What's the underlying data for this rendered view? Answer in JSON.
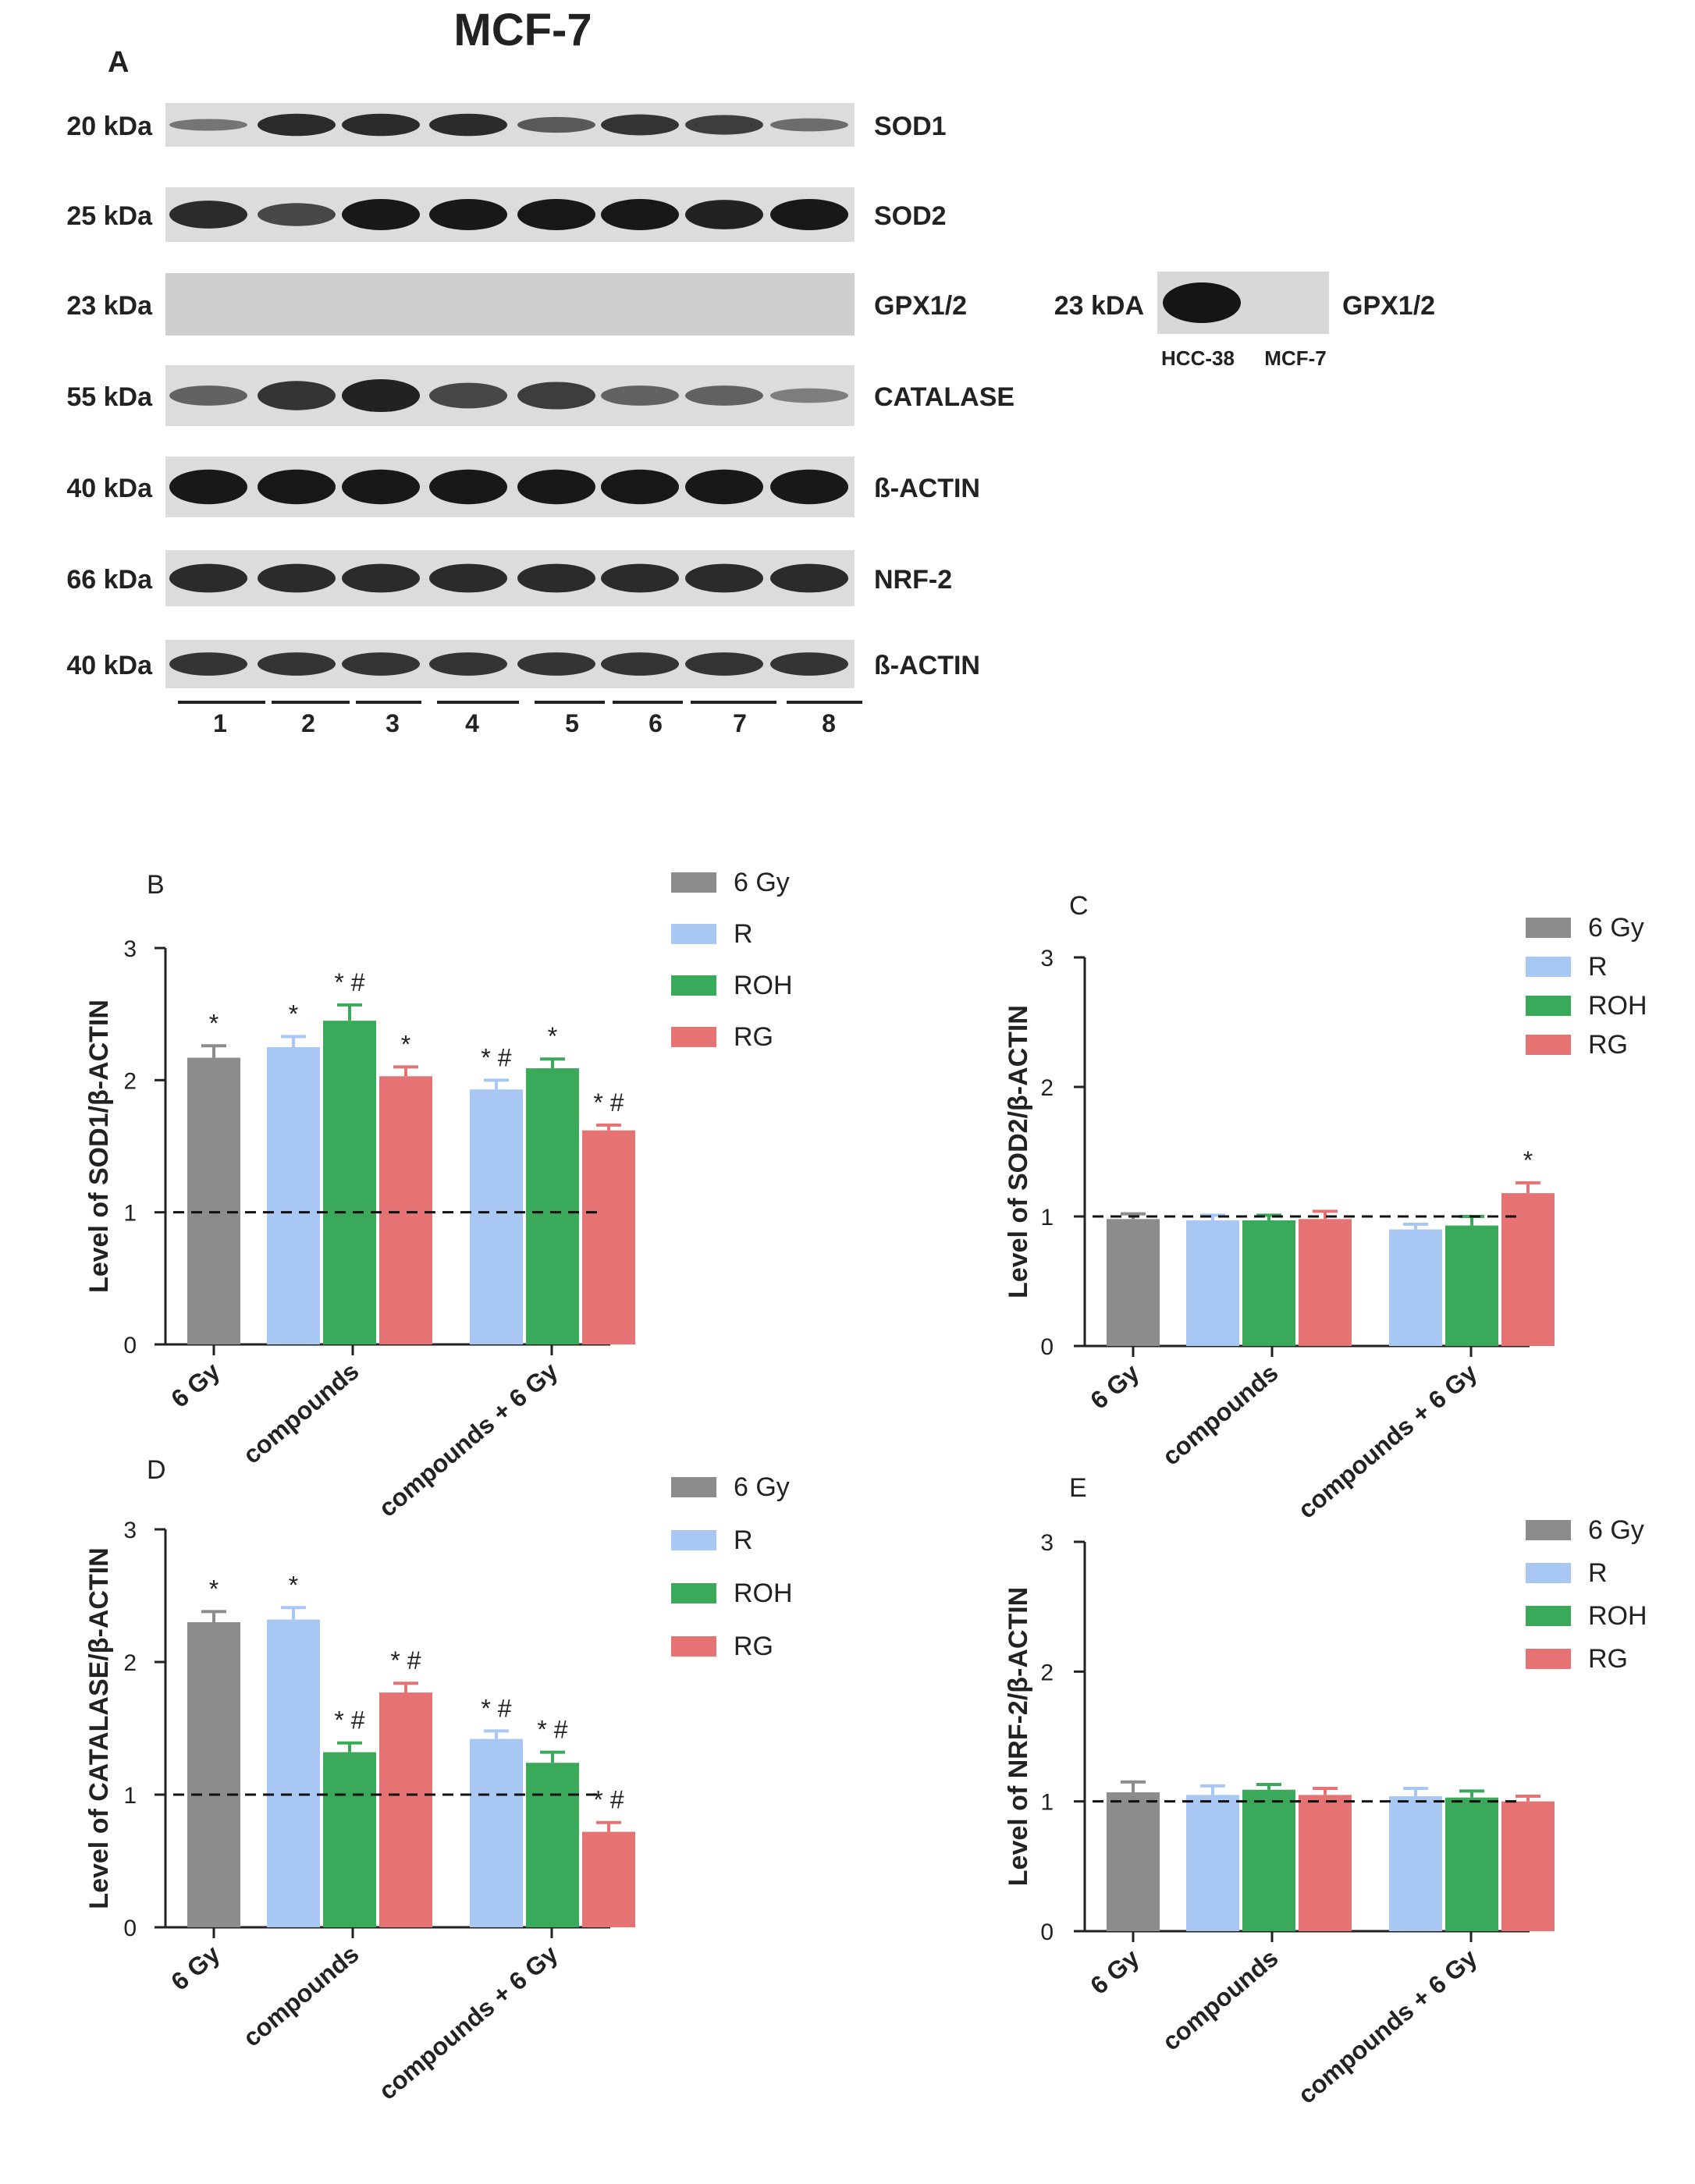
{
  "figure_title": "MCF-7",
  "panel_a": {
    "label": "A",
    "blots": [
      {
        "kda": "20 kDa",
        "protein": "SOD1",
        "bands": [
          0.45,
          0.85,
          0.85,
          0.85,
          0.6,
          0.8,
          0.75,
          0.5
        ]
      },
      {
        "kda": "25 kDa",
        "protein": "SOD2",
        "bands": [
          0.85,
          0.7,
          0.95,
          0.95,
          0.95,
          0.95,
          0.9,
          0.95
        ]
      },
      {
        "kda": "23 kDa",
        "protein": "GPX1/2",
        "bands": [
          0,
          0,
          0,
          0,
          0,
          0,
          0,
          0
        ]
      },
      {
        "kda": "55 kDa",
        "protein": "CATALASE",
        "bands": [
          0.55,
          0.8,
          0.9,
          0.7,
          0.75,
          0.55,
          0.55,
          0.4
        ]
      },
      {
        "kda": "40 kDa",
        "protein": "ß-ACTIN",
        "bands": [
          0.95,
          0.95,
          0.95,
          0.95,
          0.95,
          0.95,
          0.95,
          0.95
        ]
      },
      {
        "kda": "66 kDa",
        "protein": "NRF-2",
        "bands": [
          0.85,
          0.85,
          0.85,
          0.85,
          0.85,
          0.85,
          0.85,
          0.85
        ]
      },
      {
        "kda": "40 kDa",
        "protein": "ß-ACTIN",
        "bands": [
          0.8,
          0.8,
          0.8,
          0.8,
          0.8,
          0.8,
          0.8,
          0.8
        ]
      }
    ],
    "lanes": [
      "1",
      "2",
      "3",
      "4",
      "5",
      "6",
      "7",
      "8"
    ],
    "side_blot": {
      "kda": "23 kDA",
      "protein": "GPX1/2",
      "lanes": [
        "HCC-38",
        "MCF-7"
      ]
    }
  },
  "colors": {
    "6 Gy": "#8c8c8c",
    "R": "#a9c7f3",
    "ROH": "#3aaa5a",
    "RG": "#e57373"
  },
  "chart_data": [
    {
      "panel": "B",
      "type": "bar",
      "ylabel": "Level of SOD1/β-ACTIN",
      "ylim": [
        0,
        3
      ],
      "yticks": [
        "0",
        "1",
        "2",
        "3"
      ],
      "categories": [
        "6 Gy",
        "compounds",
        "compounds + 6 Gy"
      ],
      "legend": [
        "6 Gy",
        "R",
        "ROH",
        "RG"
      ],
      "reference_line": 1,
      "bars": [
        {
          "group": "6 Gy",
          "series": "6 Gy",
          "value": 2.17,
          "error": 0.09,
          "sig": "*"
        },
        {
          "group": "compounds",
          "series": "R",
          "value": 2.25,
          "error": 0.08,
          "sig": "*"
        },
        {
          "group": "compounds",
          "series": "ROH",
          "value": 2.45,
          "error": 0.12,
          "sig": "* #"
        },
        {
          "group": "compounds",
          "series": "RG",
          "value": 2.03,
          "error": 0.07,
          "sig": "*"
        },
        {
          "group": "compounds + 6 Gy",
          "series": "R",
          "value": 1.93,
          "error": 0.07,
          "sig": "* #"
        },
        {
          "group": "compounds + 6 Gy",
          "series": "ROH",
          "value": 2.09,
          "error": 0.07,
          "sig": "*"
        },
        {
          "group": "compounds + 6 Gy",
          "series": "RG",
          "value": 1.62,
          "error": 0.04,
          "sig": "* #"
        }
      ]
    },
    {
      "panel": "C",
      "type": "bar",
      "ylabel": "Level of SOD2/β-ACTIN",
      "ylim": [
        0,
        3
      ],
      "yticks": [
        "0",
        "1",
        "2",
        "3"
      ],
      "categories": [
        "6 Gy",
        "compounds",
        "compounds + 6 Gy"
      ],
      "legend": [
        "6 Gy",
        "R",
        "ROH",
        "RG"
      ],
      "reference_line": 1,
      "bars": [
        {
          "group": "6 Gy",
          "series": "6 Gy",
          "value": 0.98,
          "error": 0.04,
          "sig": ""
        },
        {
          "group": "compounds",
          "series": "R",
          "value": 0.97,
          "error": 0.04,
          "sig": ""
        },
        {
          "group": "compounds",
          "series": "ROH",
          "value": 0.97,
          "error": 0.04,
          "sig": ""
        },
        {
          "group": "compounds",
          "series": "RG",
          "value": 0.98,
          "error": 0.06,
          "sig": ""
        },
        {
          "group": "compounds + 6 Gy",
          "series": "R",
          "value": 0.9,
          "error": 0.04,
          "sig": ""
        },
        {
          "group": "compounds + 6 Gy",
          "series": "ROH",
          "value": 0.93,
          "error": 0.07,
          "sig": ""
        },
        {
          "group": "compounds + 6 Gy",
          "series": "RG",
          "value": 1.18,
          "error": 0.08,
          "sig": "*"
        }
      ]
    },
    {
      "panel": "D",
      "type": "bar",
      "ylabel": "Level of CATALASE/β-ACTIN",
      "ylim": [
        0,
        3
      ],
      "yticks": [
        "0",
        "1",
        "2",
        "3"
      ],
      "categories": [
        "6 Gy",
        "compounds",
        "compounds + 6 Gy"
      ],
      "legend": [
        "6 Gy",
        "R",
        "ROH",
        "RG"
      ],
      "reference_line": 1,
      "bars": [
        {
          "group": "6 Gy",
          "series": "6 Gy",
          "value": 2.3,
          "error": 0.08,
          "sig": "*"
        },
        {
          "group": "compounds",
          "series": "R",
          "value": 2.32,
          "error": 0.09,
          "sig": "*"
        },
        {
          "group": "compounds",
          "series": "ROH",
          "value": 1.32,
          "error": 0.07,
          "sig": "* #"
        },
        {
          "group": "compounds",
          "series": "RG",
          "value": 1.77,
          "error": 0.07,
          "sig": "* #"
        },
        {
          "group": "compounds + 6 Gy",
          "series": "R",
          "value": 1.42,
          "error": 0.06,
          "sig": "* #"
        },
        {
          "group": "compounds + 6 Gy",
          "series": "ROH",
          "value": 1.24,
          "error": 0.08,
          "sig": "* #"
        },
        {
          "group": "compounds + 6 Gy",
          "series": "RG",
          "value": 0.72,
          "error": 0.07,
          "sig": "* #"
        }
      ]
    },
    {
      "panel": "E",
      "type": "bar",
      "ylabel": "Level of NRF-2/β-ACTIN",
      "ylim": [
        0,
        3
      ],
      "yticks": [
        "0",
        "1",
        "2",
        "3"
      ],
      "categories": [
        "6 Gy",
        "compounds",
        "compounds + 6 Gy"
      ],
      "legend": [
        "6 Gy",
        "R",
        "ROH",
        "RG"
      ],
      "reference_line": 1,
      "bars": [
        {
          "group": "6 Gy",
          "series": "6 Gy",
          "value": 1.07,
          "error": 0.08,
          "sig": ""
        },
        {
          "group": "compounds",
          "series": "R",
          "value": 1.05,
          "error": 0.07,
          "sig": ""
        },
        {
          "group": "compounds",
          "series": "ROH",
          "value": 1.09,
          "error": 0.04,
          "sig": ""
        },
        {
          "group": "compounds",
          "series": "RG",
          "value": 1.05,
          "error": 0.05,
          "sig": ""
        },
        {
          "group": "compounds + 6 Gy",
          "series": "R",
          "value": 1.04,
          "error": 0.06,
          "sig": ""
        },
        {
          "group": "compounds + 6 Gy",
          "series": "ROH",
          "value": 1.03,
          "error": 0.05,
          "sig": ""
        },
        {
          "group": "compounds + 6 Gy",
          "series": "RG",
          "value": 1.0,
          "error": 0.04,
          "sig": ""
        }
      ]
    }
  ]
}
